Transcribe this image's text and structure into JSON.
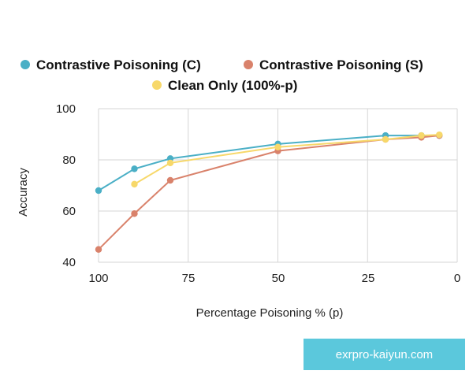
{
  "chart_data": {
    "type": "line",
    "title": "",
    "xlabel": "Percentage Poisoning % (p)",
    "ylabel": "Accuracy",
    "xlim": [
      100,
      0
    ],
    "ylim": [
      40,
      100
    ],
    "x_ticks": [
      "100",
      "75",
      "50",
      "25",
      "0"
    ],
    "y_ticks": [
      "100",
      "80",
      "60",
      "40"
    ],
    "grid": true,
    "legend_position": "top",
    "series": [
      {
        "name": "Contrastive Poisoning (C)",
        "color": "#4aafc6",
        "x": [
          100,
          90,
          80,
          50,
          20,
          10,
          5
        ],
        "y": [
          68,
          76.5,
          80.5,
          86.2,
          89.5,
          89.5,
          89.5
        ]
      },
      {
        "name": "Contrastive Poisoning (S)",
        "color": "#d9826b",
        "x": [
          100,
          90,
          80,
          50,
          20,
          10,
          5
        ],
        "y": [
          45,
          59,
          72,
          83.5,
          88,
          88.8,
          89.5
        ]
      },
      {
        "name": "Clean Only (100%-p)",
        "color": "#f7d86a",
        "x": [
          90,
          80,
          50,
          20,
          10,
          5
        ],
        "y": [
          70.5,
          78.8,
          85,
          88,
          89.5,
          89.8
        ]
      }
    ]
  },
  "watermark": "exrpro-kaiyun.com"
}
